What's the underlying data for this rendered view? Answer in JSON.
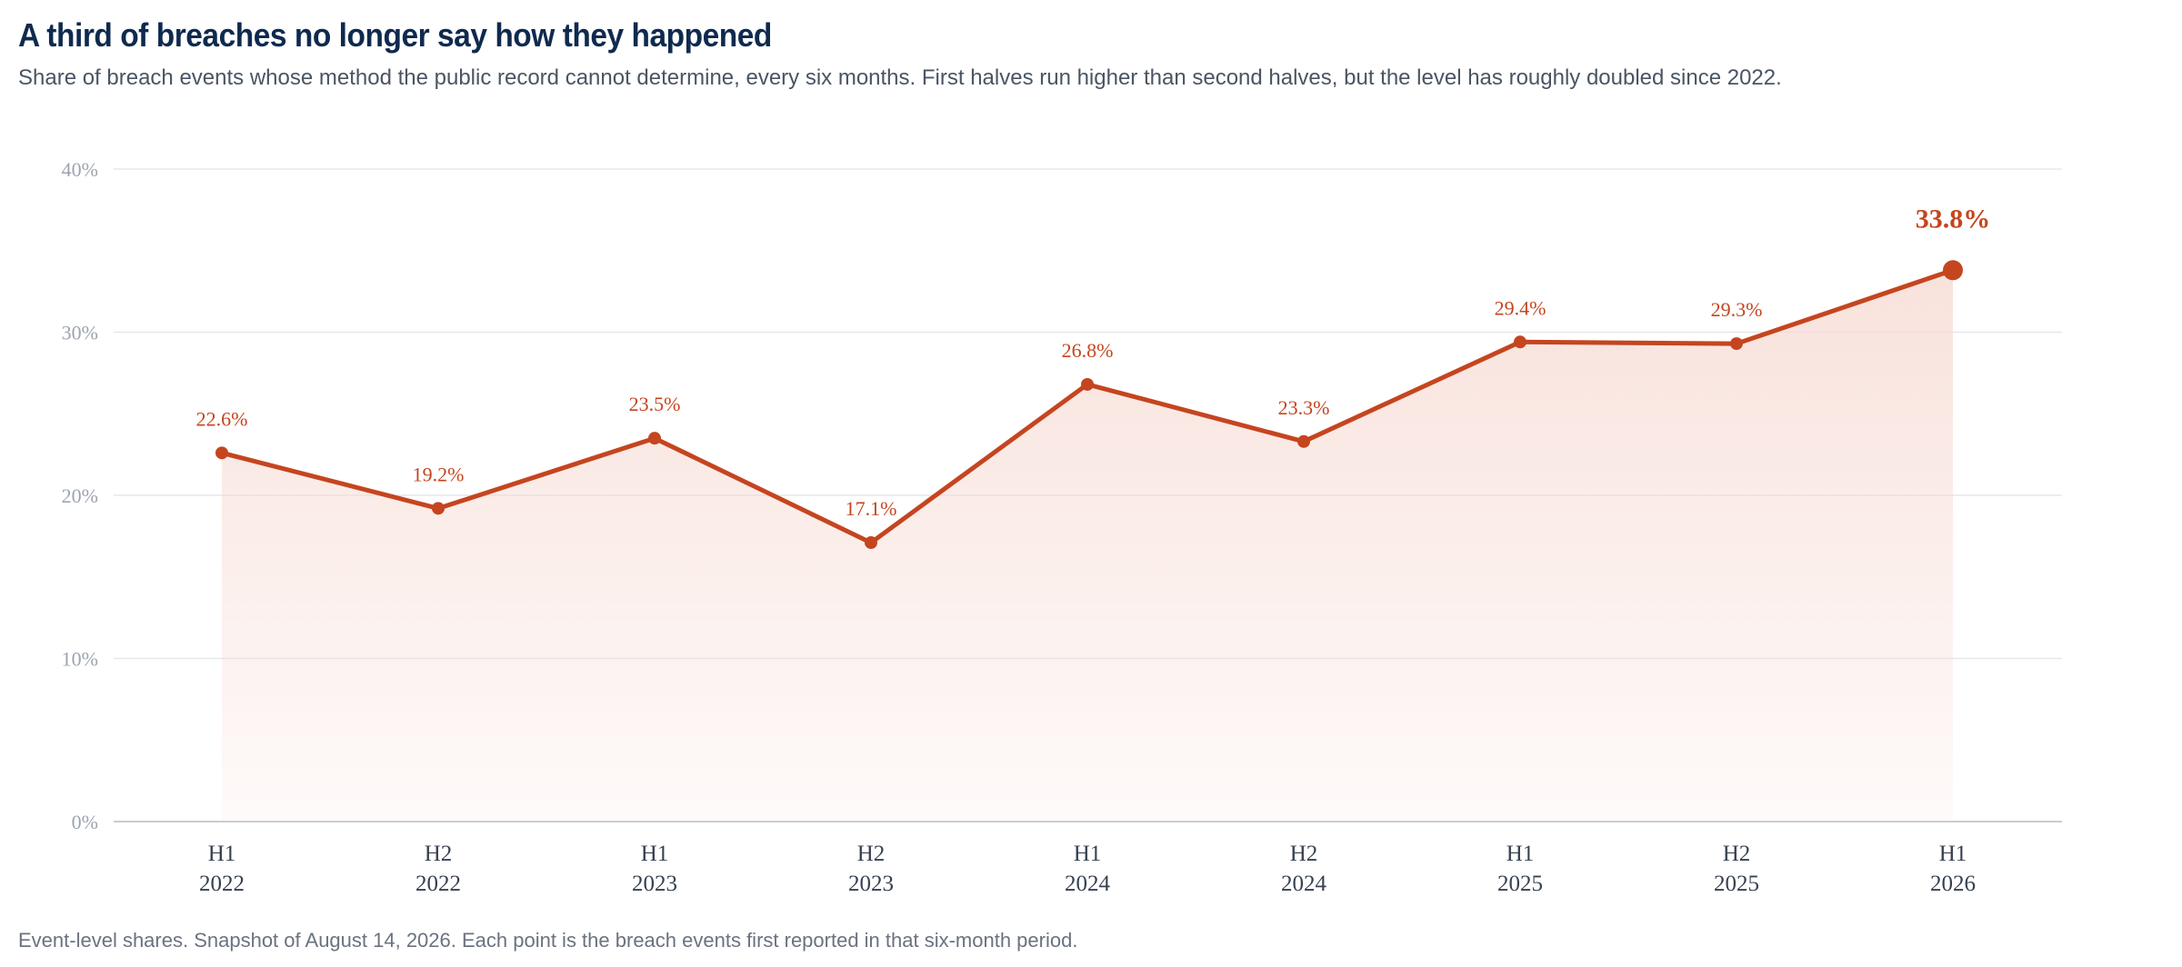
{
  "header": {
    "title": "A third of breaches no longer say how they happened",
    "subtitle": "Share of breach events whose method the public record cannot determine, every six months. First halves run higher than second halves, but the level has roughly doubled since 2022."
  },
  "footnote": "Event-level shares. Snapshot of August 14, 2026. Each point is the breach events first reported in that six-month period.",
  "colors": {
    "line": "#c5451f",
    "area_top": "#f6d8d0",
    "grid": "#e5e7eb",
    "baseline": "#c9ccd1"
  },
  "chart_data": {
    "type": "area",
    "title": "A third of breaches no longer say how they happened",
    "x": [
      "H1 2022",
      "H2 2022",
      "H1 2023",
      "H2 2023",
      "H1 2024",
      "H2 2024",
      "H1 2025",
      "H2 2025",
      "H1 2026"
    ],
    "x_tick_lines": [
      [
        "H1",
        "2022"
      ],
      [
        "H2",
        "2022"
      ],
      [
        "H1",
        "2023"
      ],
      [
        "H2",
        "2023"
      ],
      [
        "H1",
        "2024"
      ],
      [
        "H2",
        "2024"
      ],
      [
        "H1",
        "2025"
      ],
      [
        "H2",
        "2025"
      ],
      [
        "H1",
        "2026"
      ]
    ],
    "values": [
      22.6,
      19.2,
      23.5,
      17.1,
      26.8,
      23.3,
      29.4,
      29.3,
      33.8
    ],
    "data_labels": [
      "22.6%",
      "19.2%",
      "23.5%",
      "17.1%",
      "26.8%",
      "23.3%",
      "29.4%",
      "29.3%",
      "33.8%"
    ],
    "ylim": [
      0,
      40
    ],
    "yticks": [
      0,
      10,
      20,
      30,
      40
    ],
    "ytick_labels": [
      "0%",
      "10%",
      "20%",
      "30%",
      "40%"
    ],
    "xlabel": "",
    "ylabel": "",
    "grid": true,
    "legend": "none",
    "highlight_last": true
  }
}
